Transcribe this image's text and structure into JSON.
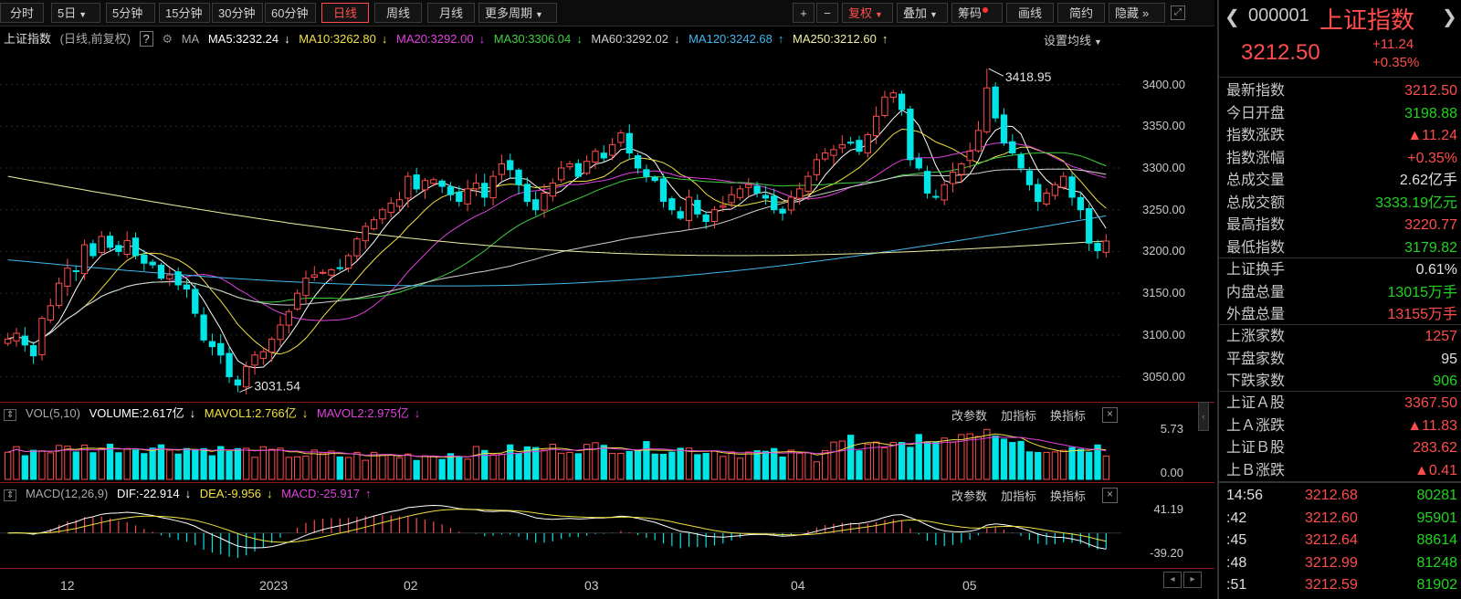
{
  "toolbar": {
    "tabs": [
      "分时",
      "5日",
      "5分钟",
      "15分钟",
      "30分钟",
      "60分钟",
      "日线",
      "周线",
      "月线",
      "更多周期"
    ],
    "selected_tab": "日线",
    "plus": "+",
    "minus": "−",
    "fuquan": "复权",
    "diejia": "叠加",
    "chouma": "筹码",
    "huaxian": "画线",
    "jianyue": "简约",
    "yincang": "隐藏"
  },
  "main": {
    "name": "上证指数",
    "mode": "(日线,前复权)",
    "help": "?",
    "ma_label": "MA",
    "ma5": "MA5:3232.24",
    "ma10": "MA10:3262.80",
    "ma20": "MA20:3292.00",
    "ma30": "MA30:3306.04",
    "ma60": "MA60:3292.02",
    "ma120": "MA120:3242.68",
    "ma250": "MA250:3212.60",
    "settings": "设置均线",
    "high_label": "3418.95",
    "low_label": "3031.54",
    "yticks": [
      "3400.00",
      "3350.00",
      "3300.00",
      "3250.00",
      "3200.00",
      "3150.00",
      "3100.00",
      "3050.00"
    ]
  },
  "vol": {
    "label": "VOL(5,10)",
    "volume": "VOLUME:2.617亿",
    "mavol1": "MAVOL1:2.766亿",
    "mavol2": "MAVOL2:2.975亿",
    "yticks": [
      "5.73",
      "0.00"
    ]
  },
  "macd": {
    "label": "MACD(12,26,9)",
    "dif": "DIF:-22.914",
    "dea": "DEA:-9.956",
    "macd": "MACD:-25.917",
    "yticks": [
      "41.19",
      "-39.20"
    ]
  },
  "panel_buttons": {
    "gaicanshu": "改参数",
    "jiazhibiao": "加指标",
    "huanzhibiao": "换指标",
    "close": "×"
  },
  "xaxis": [
    "12",
    "2023",
    "02",
    "03",
    "04",
    "05"
  ],
  "quote": {
    "code": "000001",
    "name": "上证指数",
    "price": "3212.50",
    "change": "+11.24",
    "pct": "+0.35%",
    "rows1": [
      {
        "label": "最新指数",
        "value": "3212.50",
        "color": "red"
      },
      {
        "label": "今日开盘",
        "value": "3198.88",
        "color": "green"
      },
      {
        "label": "指数涨跌",
        "value": "▲11.24",
        "color": "red"
      },
      {
        "label": "指数涨幅",
        "value": "+0.35%",
        "color": "red"
      },
      {
        "label": "总成交量",
        "value": "2.62亿手",
        "color": "white"
      },
      {
        "label": "总成交额",
        "value": "3333.19亿元",
        "color": "green"
      },
      {
        "label": "最高指数",
        "value": "3220.77",
        "color": "red"
      },
      {
        "label": "最低指数",
        "value": "3179.82",
        "color": "green"
      }
    ],
    "rows2": [
      {
        "label": "上证换手",
        "value": "0.61%",
        "color": "white"
      },
      {
        "label": "内盘总量",
        "value": "13015万手",
        "color": "green"
      },
      {
        "label": "外盘总量",
        "value": "13155万手",
        "color": "red"
      }
    ],
    "rows3": [
      {
        "label": "上涨家数",
        "value": "1257",
        "color": "red"
      },
      {
        "label": "平盘家数",
        "value": "95",
        "color": "white"
      },
      {
        "label": "下跌家数",
        "value": "906",
        "color": "green"
      }
    ],
    "rows4": [
      {
        "label": "上证Ａ股",
        "value": "3367.50",
        "color": "red"
      },
      {
        "label": "上Ａ涨跌",
        "value": "▲11.83",
        "color": "red"
      },
      {
        "label": "上证Ｂ股",
        "value": "283.62",
        "color": "red"
      },
      {
        "label": "上Ｂ涨跌",
        "value": "▲0.41",
        "color": "red"
      }
    ],
    "ticks": [
      {
        "time": "14:56",
        "price": "3212.68",
        "vol": "80281"
      },
      {
        "time": ":42",
        "price": "3212.60",
        "vol": "95901"
      },
      {
        "time": ":45",
        "price": "3212.64",
        "vol": "88614"
      },
      {
        "time": ":48",
        "price": "3212.99",
        "vol": "81248"
      },
      {
        "time": ":51",
        "price": "3212.59",
        "vol": "81902"
      }
    ]
  },
  "colors": {
    "up": "#ff4d4d",
    "down": "#00e5e5",
    "ma5": "#ffffff",
    "ma10": "#f0e040",
    "ma20": "#e040e0",
    "ma30": "#40d040",
    "ma60": "#d0d0d0",
    "ma120": "#40b8f0",
    "ma250": "#f0f0a0"
  },
  "chart_data": {
    "type": "candlestick",
    "ylim": [
      3020,
      3440
    ],
    "volume_ylim": [
      0,
      5.73
    ],
    "macd_ylim": [
      -39.2,
      41.19
    ],
    "x_labels": [
      "12",
      "2023",
      "02",
      "03",
      "04",
      "05"
    ],
    "closes": [
      3095,
      3102,
      3088,
      3075,
      3120,
      3135,
      3162,
      3180,
      3176,
      3208,
      3195,
      3218,
      3205,
      3200,
      3213,
      3195,
      3186,
      3184,
      3168,
      3172,
      3160,
      3155,
      3126,
      3094,
      3086,
      3076,
      3050,
      3040,
      3062,
      3076,
      3080,
      3095,
      3112,
      3128,
      3150,
      3168,
      3172,
      3175,
      3178,
      3180,
      3195,
      3215,
      3230,
      3238,
      3250,
      3258,
      3262,
      3290,
      3275,
      3285,
      3286,
      3278,
      3268,
      3260,
      3275,
      3282,
      3265,
      3290,
      3305,
      3298,
      3280,
      3260,
      3250,
      3270,
      3282,
      3300,
      3305,
      3290,
      3308,
      3320,
      3312,
      3328,
      3342,
      3318,
      3300,
      3290,
      3285,
      3260,
      3250,
      3240,
      3265,
      3245,
      3236,
      3250,
      3255,
      3268,
      3275,
      3280,
      3270,
      3264,
      3250,
      3246,
      3265,
      3275,
      3290,
      3310,
      3318,
      3322,
      3328,
      3330,
      3320,
      3340,
      3362,
      3385,
      3390,
      3370,
      3310,
      3300,
      3270,
      3265,
      3280,
      3295,
      3305,
      3320,
      3345,
      3396,
      3360,
      3330,
      3318,
      3300,
      3280,
      3260,
      3270,
      3280,
      3290,
      3265,
      3250,
      3210,
      3201,
      3212.5
    ],
    "highs_marked": {
      "max": 3418.95,
      "min": 3031.54
    },
    "ma_latest": {
      "MA5": 3232.24,
      "MA10": 3262.8,
      "MA20": 3292.0,
      "MA30": 3306.04,
      "MA60": 3292.02,
      "MA120": 3242.68,
      "MA250": 3212.6
    },
    "volume_latest": 2.617,
    "macd_latest": {
      "DIF": -22.914,
      "DEA": -9.956,
      "MACD": -25.917
    }
  }
}
